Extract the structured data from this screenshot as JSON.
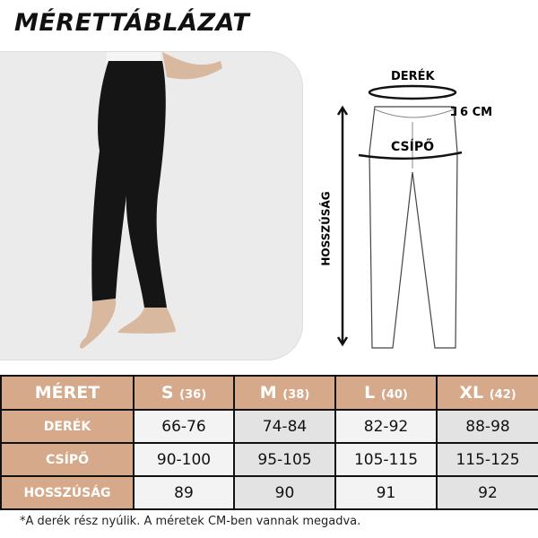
{
  "title": "MÉRETTÁBLÁZAT",
  "diagram": {
    "waist_label": "DERÉK",
    "band_label": "6 CM",
    "hip_label": "CSÍPŐ",
    "length_label": "HOSSZÚSÁG"
  },
  "table": {
    "header_label": "MÉRET",
    "sizes": [
      {
        "size": "S",
        "eu": "(36)"
      },
      {
        "size": "M",
        "eu": "(38)"
      },
      {
        "size": "L",
        "eu": "(40)"
      },
      {
        "size": "XL",
        "eu": "(42)"
      }
    ],
    "rows": [
      {
        "label": "DERÉK",
        "values": [
          "66-76",
          "74-84",
          "82-92",
          "88-98"
        ]
      },
      {
        "label": "CSÍPŐ",
        "values": [
          "90-100",
          "95-105",
          "105-115",
          "115-125"
        ]
      },
      {
        "label": "HOSSZÚSÁG",
        "values": [
          "89",
          "90",
          "91",
          "92"
        ]
      }
    ]
  },
  "note": "*A derék rész nyúlik. A méretek CM-ben vannak megadva.",
  "colors": {
    "accent": "#d6a98a",
    "cell_light": "#f3f3f3",
    "cell_dark": "#e3e3e3"
  }
}
